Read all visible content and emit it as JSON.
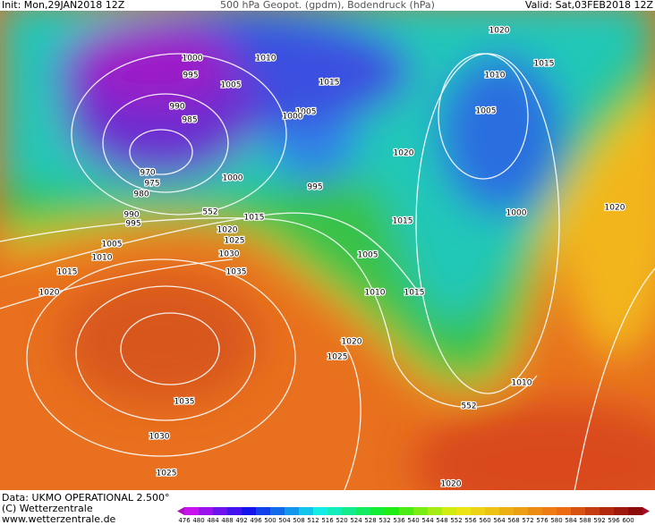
{
  "header": {
    "init": "Init: Mon,29JAN2018 12Z",
    "title": "500 hPa Geopot. (gpdm), Bodendruck (hPa)",
    "valid": "Valid: Sat,03FEB2018 12Z"
  },
  "isobar_labels": [
    "1000",
    "995",
    "1010",
    "1005",
    "990",
    "985",
    "1015",
    "1020",
    "1015",
    "1010",
    "1005",
    "1005",
    "1000",
    "1020",
    "970",
    "975",
    "980",
    "1000",
    "995",
    "990",
    "995",
    "1015",
    "1000",
    "1020",
    "1020",
    "1025",
    "1005",
    "1010",
    "1030",
    "1015",
    "1005",
    "1015",
    "1035",
    "1020",
    "1010",
    "1015",
    "1020",
    "1025",
    "1010",
    "1035",
    "1030",
    "1025",
    "1020"
  ],
  "height_labels": [
    "552",
    "552"
  ],
  "colorbar": {
    "labels": [
      476,
      480,
      484,
      488,
      492,
      496,
      500,
      504,
      508,
      512,
      516,
      520,
      524,
      528,
      532,
      536,
      540,
      544,
      548,
      552,
      556,
      560,
      564,
      568,
      572,
      576,
      580,
      584,
      588,
      592,
      596,
      600
    ]
  },
  "footer": {
    "data": "Data: UKMO OPERATIONAL 2.500°",
    "copyright": "(C) Wetterzentrale",
    "url": "www.wetterzentrale.de"
  }
}
